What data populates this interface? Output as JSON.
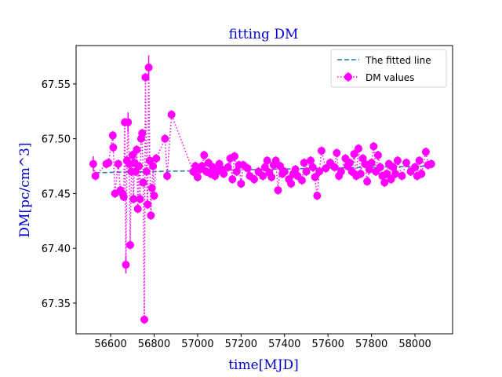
{
  "chart_data": {
    "type": "errorbar",
    "title": "fitting DM",
    "x_label": "time[MJD]",
    "y_label": "DM[pc/cm^3]",
    "xlim": [
      56441,
      58173
    ],
    "ylim": [
      67.322,
      67.585
    ],
    "xticks": [
      56600,
      56800,
      57000,
      57200,
      57400,
      57600,
      57800,
      58000
    ],
    "yticks": [
      67.35,
      {
        "value": 67.4,
        "label": "67.40"
      },
      67.45,
      {
        "value": 67.5,
        "label": "67.50"
      },
      67.55
    ],
    "legend": "upper right",
    "series": [
      {
        "name": "The fitted line",
        "color": "#1f77b4",
        "style": "dashed",
        "x": [
          56530,
          58070
        ],
        "values": [
          67.469,
          67.475
        ]
      },
      {
        "name": "DM values",
        "color": "#ff00ff",
        "style": "dotted",
        "x": [
          56520,
          56530,
          56580,
          56590,
          56610,
          56612,
          56620,
          56635,
          56645,
          56655,
          56660,
          56665,
          56670,
          56675,
          56680,
          56685,
          56690,
          56695,
          56700,
          56705,
          56710,
          56715,
          56720,
          56725,
          56730,
          56735,
          56740,
          56745,
          56750,
          56755,
          56760,
          56765,
          56770,
          56775,
          56780,
          56785,
          56790,
          56795,
          56800,
          56810,
          56850,
          56860,
          56880,
          56980,
          56990,
          57000,
          57010,
          57020,
          57030,
          57040,
          57050,
          57060,
          57070,
          57080,
          57090,
          57100,
          57110,
          57120,
          57140,
          57150,
          57160,
          57170,
          57180,
          57190,
          57200,
          57210,
          57230,
          57240,
          57260,
          57280,
          57300,
          57310,
          57320,
          57330,
          57340,
          57350,
          57360,
          57370,
          57380,
          57390,
          57400,
          57420,
          57430,
          57440,
          57450,
          57460,
          57480,
          57490,
          57500,
          57520,
          57530,
          57540,
          57550,
          57560,
          57570,
          57590,
          57610,
          57630,
          57640,
          57650,
          57660,
          57680,
          57690,
          57700,
          57710,
          57720,
          57730,
          57740,
          57750,
          57760,
          57770,
          57780,
          57790,
          57800,
          57810,
          57820,
          57830,
          57840,
          57850,
          57860,
          57870,
          57880,
          57890,
          57900,
          57910,
          57920,
          57940,
          57960,
          57980,
          58000,
          58010,
          58020,
          58030,
          58050,
          58060,
          58075
        ],
        "values": [
          67.477,
          67.466,
          67.477,
          67.478,
          67.503,
          67.492,
          67.45,
          67.477,
          67.453,
          67.45,
          67.447,
          67.515,
          67.385,
          67.48,
          67.515,
          67.477,
          67.403,
          67.47,
          67.485,
          67.445,
          67.478,
          67.47,
          67.49,
          67.436,
          67.475,
          67.445,
          67.5,
          67.505,
          67.46,
          67.335,
          67.556,
          67.47,
          67.44,
          67.565,
          67.48,
          67.43,
          67.455,
          67.475,
          67.448,
          67.482,
          67.5,
          67.466,
          67.522,
          67.47,
          67.475,
          67.465,
          67.472,
          67.475,
          67.485,
          67.47,
          67.478,
          67.468,
          67.474,
          67.466,
          67.47,
          67.477,
          67.472,
          67.468,
          67.474,
          67.482,
          67.463,
          67.484,
          67.47,
          67.476,
          67.459,
          67.476,
          67.473,
          67.466,
          67.463,
          67.47,
          67.466,
          67.474,
          67.48,
          67.469,
          67.465,
          67.476,
          67.48,
          67.453,
          67.475,
          67.468,
          67.47,
          67.463,
          67.459,
          67.468,
          67.472,
          67.466,
          67.462,
          67.478,
          67.47,
          67.48,
          67.474,
          67.465,
          67.448,
          67.47,
          67.489,
          67.473,
          67.478,
          67.474,
          67.487,
          67.466,
          67.47,
          67.482,
          67.475,
          67.478,
          67.47,
          67.486,
          67.466,
          67.491,
          67.468,
          67.482,
          67.477,
          67.461,
          67.472,
          67.478,
          67.493,
          67.47,
          67.485,
          67.474,
          67.466,
          67.46,
          67.468,
          67.477,
          67.463,
          67.474,
          67.468,
          67.48,
          67.466,
          67.478,
          67.47,
          67.474,
          67.466,
          67.48,
          67.468,
          67.488,
          67.476,
          67.477
        ],
        "errors": [
          0.007,
          0.004,
          0.004,
          0.004,
          0.004,
          0.004,
          0.004,
          0.004,
          0.004,
          0.004,
          0.004,
          0.004,
          0.008,
          0.004,
          0.009,
          0.004,
          0.004,
          0.004,
          0.004,
          0.004,
          0.004,
          0.004,
          0.004,
          0.004,
          0.004,
          0.004,
          0.004,
          0.004,
          0.004,
          0.004,
          0.004,
          0.004,
          0.004,
          0.011,
          0.004,
          0.004,
          0.004,
          0.004,
          0.004,
          0.004,
          0.004,
          0.004,
          0.004,
          0.004,
          0.004,
          0.004,
          0.004,
          0.004,
          0.004,
          0.004,
          0.004,
          0.004,
          0.004,
          0.004,
          0.004,
          0.004,
          0.004,
          0.004,
          0.004,
          0.004,
          0.004,
          0.004,
          0.004,
          0.004,
          0.004,
          0.004,
          0.004,
          0.004,
          0.004,
          0.004,
          0.004,
          0.004,
          0.004,
          0.004,
          0.004,
          0.004,
          0.004,
          0.004,
          0.004,
          0.004,
          0.004,
          0.004,
          0.004,
          0.004,
          0.004,
          0.004,
          0.004,
          0.004,
          0.004,
          0.004,
          0.004,
          0.004,
          0.004,
          0.004,
          0.004,
          0.004,
          0.004,
          0.004,
          0.004,
          0.004,
          0.004,
          0.004,
          0.004,
          0.004,
          0.004,
          0.004,
          0.004,
          0.004,
          0.004,
          0.004,
          0.004,
          0.004,
          0.004,
          0.004,
          0.004,
          0.004,
          0.004,
          0.004,
          0.004,
          0.004,
          0.004,
          0.004,
          0.004,
          0.004,
          0.004,
          0.004,
          0.004,
          0.004,
          0.004,
          0.004,
          0.004,
          0.004,
          0.004,
          0.004,
          0.004,
          0.004
        ]
      }
    ]
  }
}
